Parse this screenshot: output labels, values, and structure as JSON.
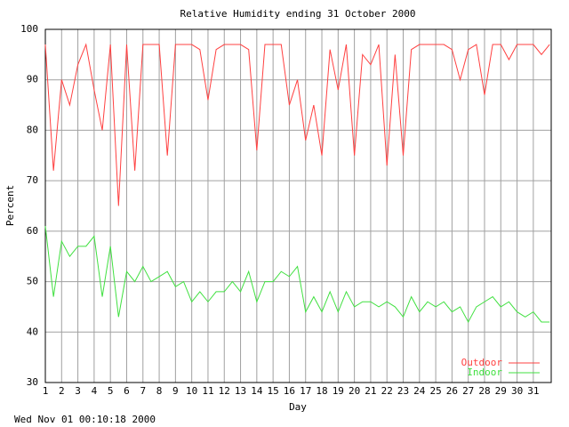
{
  "chart_data": {
    "type": "line",
    "title": "Relative Humidity ending 31 October 2000",
    "x_label": "Day",
    "y_label": "Percent",
    "x": [
      1,
      1.5,
      2,
      2.5,
      3,
      3.5,
      4,
      4.5,
      5,
      5.5,
      6,
      6.5,
      7,
      7.5,
      8,
      8.5,
      9,
      9.5,
      10,
      10.5,
      11,
      11.5,
      12,
      12.5,
      13,
      13.5,
      14,
      14.5,
      15,
      15.5,
      16,
      16.5,
      17,
      17.5,
      18,
      18.5,
      19,
      19.5,
      20,
      20.5,
      21,
      21.5,
      22,
      22.5,
      23,
      23.5,
      24,
      24.5,
      25,
      25.5,
      26,
      26.5,
      27,
      27.5,
      28,
      28.5,
      29,
      29.5,
      30,
      30.5,
      31,
      31.5,
      32
    ],
    "series": [
      {
        "name": "Outdoor",
        "color": "#ff4040",
        "values": [
          97,
          72,
          90,
          85,
          93,
          97,
          88,
          80,
          97,
          65,
          97,
          72,
          97,
          97,
          97,
          75,
          97,
          97,
          97,
          96,
          86,
          96,
          97,
          97,
          97,
          96,
          76,
          97,
          97,
          97,
          85,
          90,
          78,
          85,
          75,
          96,
          88,
          97,
          75,
          95,
          93,
          97,
          73,
          95,
          75,
          96,
          97,
          97,
          97,
          97,
          96,
          90,
          96,
          97,
          87,
          97,
          97,
          94,
          97,
          97,
          97,
          95,
          97
        ]
      },
      {
        "name": "Indoor",
        "color": "#40e040",
        "values": [
          61,
          47,
          58,
          55,
          57,
          57,
          59,
          47,
          57,
          43,
          52,
          50,
          53,
          50,
          51,
          52,
          49,
          50,
          46,
          48,
          46,
          48,
          48,
          50,
          48,
          52,
          46,
          50,
          50,
          52,
          51,
          53,
          44,
          47,
          44,
          48,
          44,
          48,
          45,
          46,
          46,
          45,
          46,
          45,
          43,
          47,
          44,
          46,
          45,
          46,
          44,
          45,
          42,
          45,
          46,
          47,
          45,
          46,
          44,
          43,
          44,
          42,
          42
        ]
      }
    ],
    "xlim": [
      1,
      32.1
    ],
    "ylim": [
      30,
      100
    ],
    "xticks": [
      1,
      2,
      3,
      4,
      5,
      6,
      7,
      8,
      9,
      10,
      11,
      12,
      13,
      14,
      15,
      16,
      17,
      18,
      19,
      20,
      21,
      22,
      23,
      24,
      25,
      26,
      27,
      28,
      29,
      30,
      31
    ],
    "yticks": [
      30,
      40,
      50,
      60,
      70,
      80,
      90,
      100
    ],
    "grid": true,
    "legend": "lower right"
  },
  "timestamp": "Wed Nov 01 00:10:18 2000"
}
